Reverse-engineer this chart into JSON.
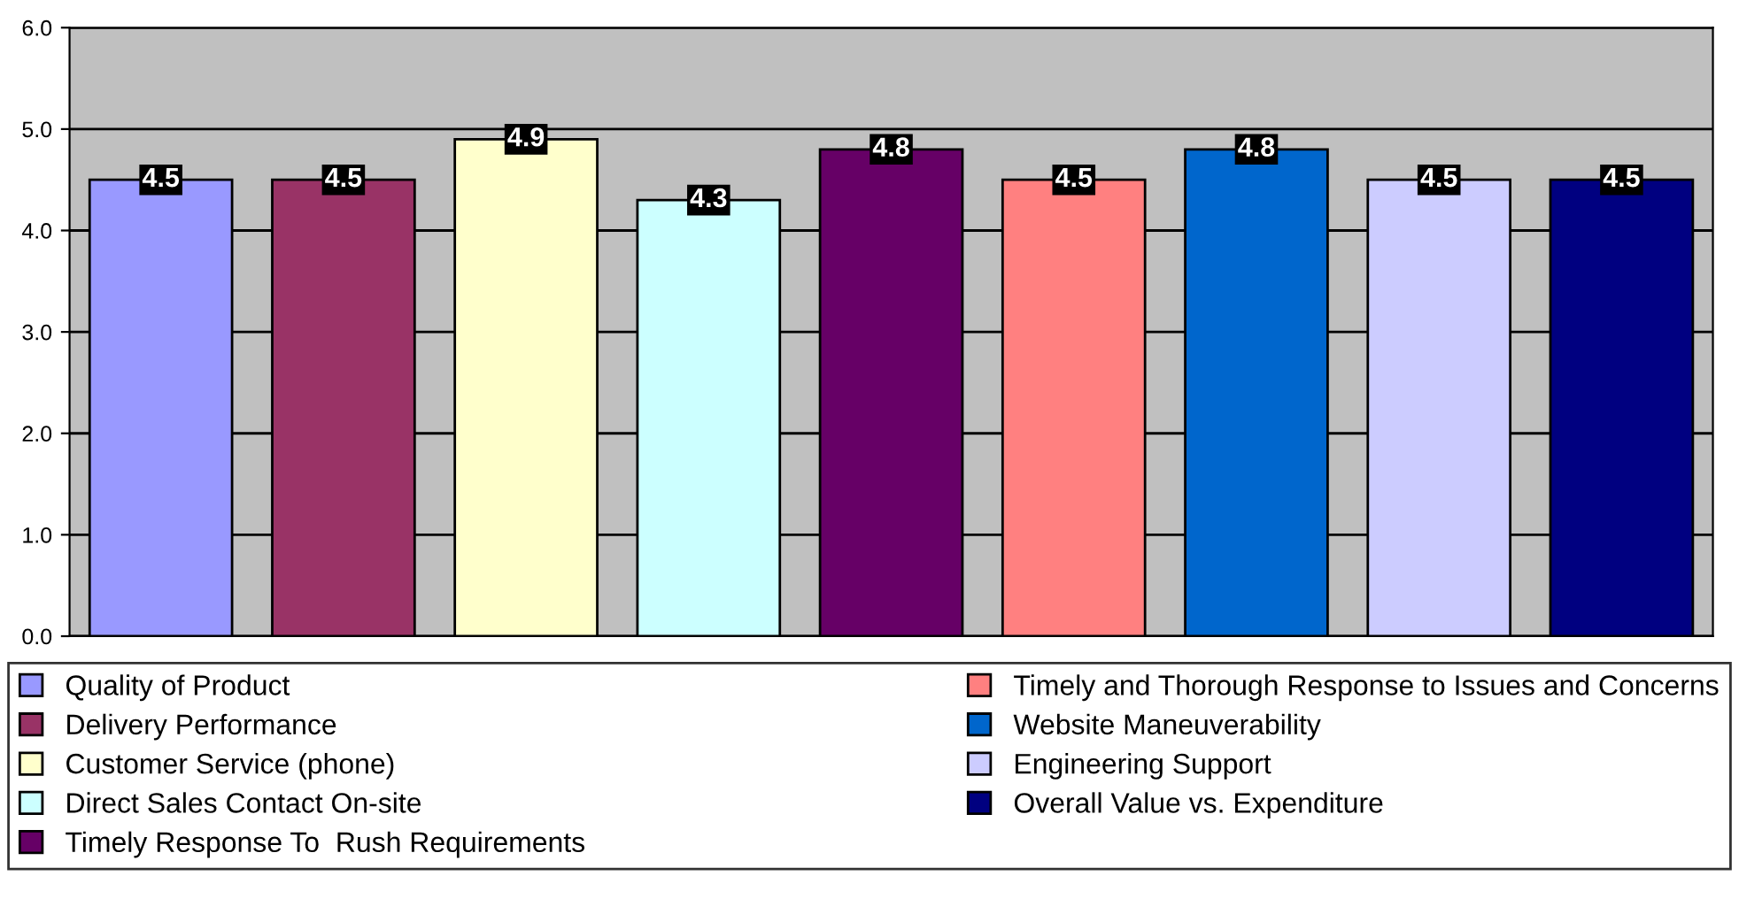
{
  "chart_data": {
    "type": "bar",
    "categories": [
      null,
      null,
      null,
      null,
      null,
      null,
      null,
      null,
      null
    ],
    "series": [
      {
        "name": "Quality of Product",
        "color": "#9999ff",
        "values": [
          4.5,
          null,
          null,
          null,
          null,
          null,
          null,
          null,
          null
        ]
      },
      {
        "name": "Delivery Performance",
        "color": "#993366",
        "values": [
          null,
          4.5,
          null,
          null,
          null,
          null,
          null,
          null,
          null
        ]
      },
      {
        "name": "Customer Service (phone)",
        "color": "#ffffcc",
        "values": [
          null,
          null,
          4.9,
          null,
          null,
          null,
          null,
          null,
          null
        ]
      },
      {
        "name": "Direct Sales Contact On-site",
        "color": "#ccffff",
        "values": [
          null,
          null,
          null,
          4.3,
          null,
          null,
          null,
          null,
          null
        ]
      },
      {
        "name": "Timely Response To  Rush Requirements",
        "color": "#660066",
        "values": [
          null,
          null,
          null,
          null,
          4.8,
          null,
          null,
          null,
          null
        ]
      },
      {
        "name": "Timely and Thorough Response to Issues and Concerns",
        "color": "#ff8080",
        "values": [
          null,
          null,
          null,
          null,
          null,
          4.5,
          null,
          null,
          null
        ]
      },
      {
        "name": "Website Maneuverability",
        "color": "#0066cc",
        "values": [
          null,
          null,
          null,
          null,
          null,
          null,
          4.8,
          null,
          null
        ]
      },
      {
        "name": "Engineering Support",
        "color": "#ccccff",
        "values": [
          null,
          null,
          null,
          null,
          null,
          null,
          null,
          4.5,
          null
        ]
      },
      {
        "name": "Overall Value vs. Expenditure",
        "color": "#000080",
        "values": [
          null,
          null,
          null,
          null,
          null,
          null,
          null,
          null,
          4.5
        ]
      }
    ],
    "ylim": [
      0,
      6
    ],
    "yticks": [
      {
        "value": 0,
        "label": "0.0"
      },
      {
        "value": 1,
        "label": "1.0"
      },
      {
        "value": 2,
        "label": "2.0"
      },
      {
        "value": 3,
        "label": "3.0"
      },
      {
        "value": 4,
        "label": "4.0"
      },
      {
        "value": 5,
        "label": "5.0"
      },
      {
        "value": 6,
        "label": "6.0"
      }
    ],
    "grid": "y",
    "legend": "bottom",
    "data_labels": true,
    "tick_labels": "y"
  }
}
